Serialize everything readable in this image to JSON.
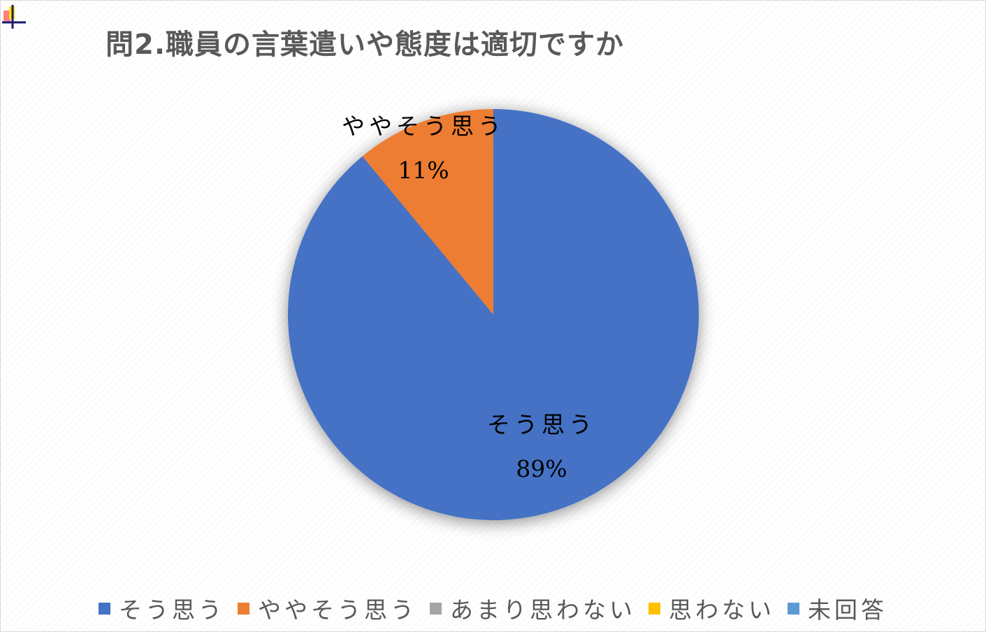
{
  "chart_data": {
    "type": "pie",
    "title": "問2.職員の言葉遣いや態度は適切ですか",
    "categories": [
      "そう思う",
      "ややそう思う",
      "あまり思わない",
      "思わない",
      "未回答"
    ],
    "values": [
      89,
      11,
      0,
      0,
      0
    ],
    "value_unit": "%",
    "data_labels": [
      {
        "category": "そう思う",
        "percent": "89%"
      },
      {
        "category": "ややそう思う",
        "percent": "11%"
      }
    ],
    "colors": [
      "#4472C4",
      "#ED7D31",
      "#A5A5A5",
      "#FFC000",
      "#5B9BD5"
    ],
    "legend_position": "bottom"
  }
}
